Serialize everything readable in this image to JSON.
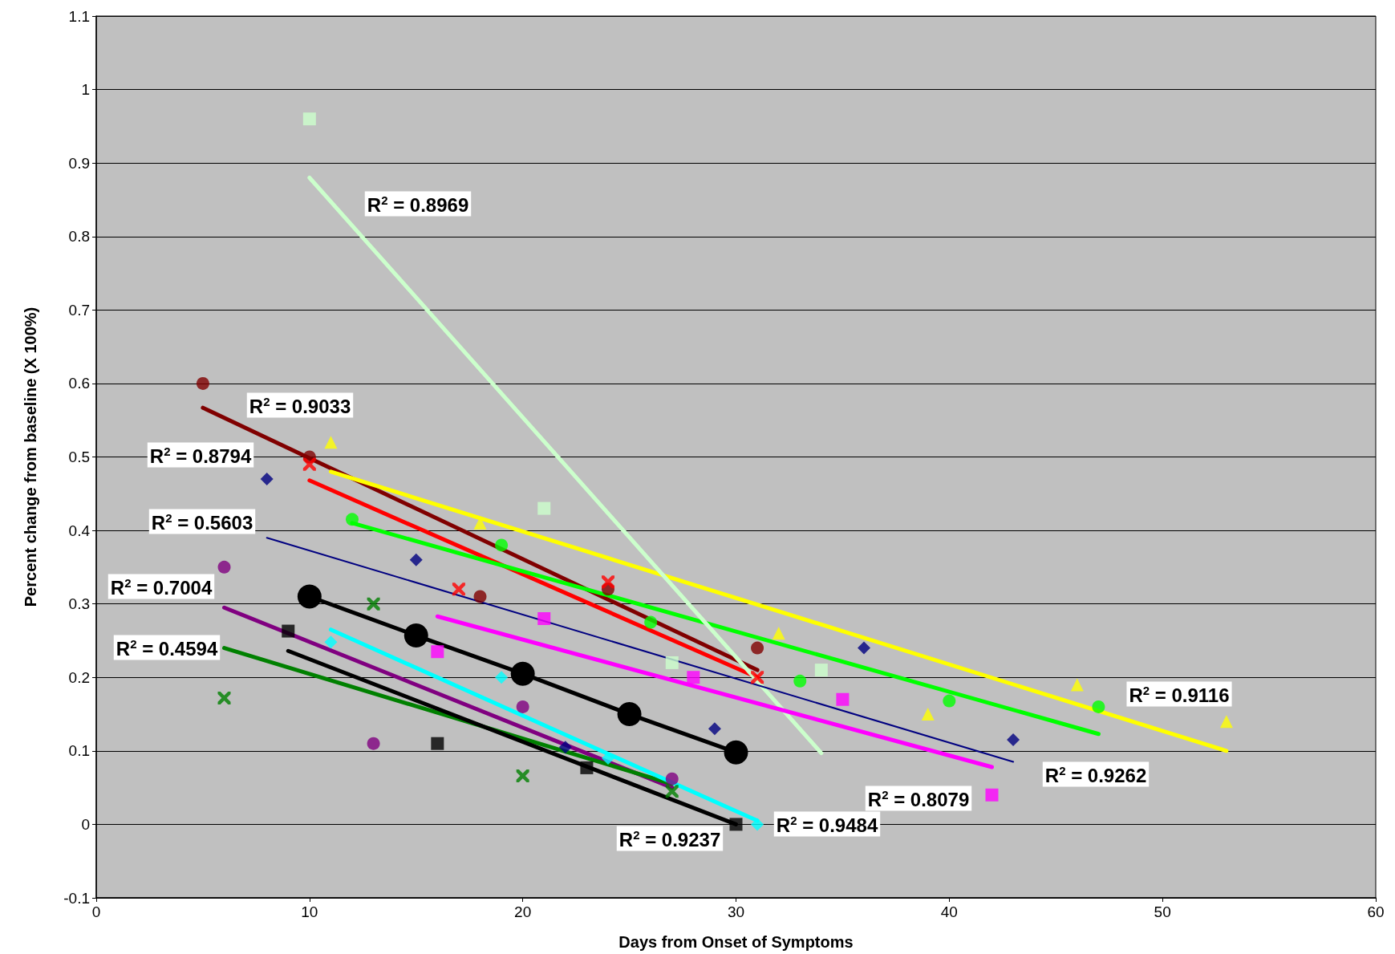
{
  "chart_data": {
    "type": "scatter",
    "xlabel": "Days from Onset of Symptoms",
    "ylabel": "Percent change from baseline (X 100%)",
    "xlim": [
      0,
      60
    ],
    "xticks": [
      0,
      10,
      20,
      30,
      40,
      50,
      60
    ],
    "ylim": [
      -0.1,
      1.1
    ],
    "yticks": [
      -0.1,
      0,
      0.1,
      0.2,
      0.3,
      0.4,
      0.5,
      0.6,
      0.7,
      0.8,
      0.9,
      1,
      1.1
    ],
    "grid": "y",
    "series": [
      {
        "marker": "circle",
        "color": "#800000",
        "x": [
          5,
          10,
          18,
          24,
          31
        ],
        "values": [
          0.6,
          0.5,
          0.31,
          0.32,
          0.24
        ]
      },
      {
        "type": "line",
        "color": "#800000",
        "x": [
          5,
          31
        ],
        "values": [
          0.567,
          0.21
        ]
      },
      {
        "marker": "cross",
        "color": "#ff0000",
        "x": [
          10,
          17,
          24,
          31
        ],
        "values": [
          0.49,
          0.32,
          0.33,
          0.2
        ]
      },
      {
        "type": "line",
        "color": "#ff0000",
        "x": [
          10,
          31
        ],
        "values": [
          0.468,
          0.2
        ]
      },
      {
        "marker": "triangle",
        "color": "#ffff00",
        "x": [
          11,
          18,
          32,
          39,
          46,
          53
        ],
        "values": [
          0.52,
          0.41,
          0.26,
          0.15,
          0.19,
          0.14
        ]
      },
      {
        "type": "line",
        "color": "#ffff00",
        "x": [
          11,
          53
        ],
        "values": [
          0.48,
          0.1
        ]
      },
      {
        "marker": "circle",
        "color": "#00ff00",
        "x": [
          12,
          19,
          26,
          33,
          40,
          47
        ],
        "values": [
          0.415,
          0.38,
          0.275,
          0.195,
          0.168,
          0.16
        ]
      },
      {
        "type": "line",
        "color": "#00ff00",
        "x": [
          12,
          47
        ],
        "values": [
          0.41,
          0.123
        ]
      },
      {
        "marker": "square",
        "color": "#ccffcc",
        "x": [
          10,
          21,
          27,
          34
        ],
        "values": [
          0.96,
          0.43,
          0.22,
          0.21
        ]
      },
      {
        "type": "line",
        "color": "#ccffcc",
        "x": [
          10,
          34
        ],
        "values": [
          0.88,
          0.097
        ]
      },
      {
        "marker": "diamond",
        "color": "#000080",
        "x": [
          8,
          15,
          22,
          29,
          36,
          43
        ],
        "values": [
          0.47,
          0.36,
          0.105,
          0.13,
          0.24,
          0.115
        ]
      },
      {
        "type": "line",
        "color": "#000080",
        "x": [
          8,
          43
        ],
        "values": [
          0.39,
          0.085
        ]
      },
      {
        "marker": "square",
        "color": "#ff00ff",
        "x": [
          16,
          21,
          28,
          35,
          42
        ],
        "values": [
          0.235,
          0.28,
          0.2,
          0.17,
          0.04
        ]
      },
      {
        "type": "line",
        "color": "#ff00ff",
        "x": [
          16,
          42
        ],
        "values": [
          0.283,
          0.078
        ]
      },
      {
        "type": "line",
        "marker": "circle",
        "color": "#000000",
        "x": [
          10,
          15,
          20,
          25,
          30
        ],
        "values": [
          0.31,
          0.257,
          0.205,
          0.15,
          0.098
        ]
      },
      {
        "marker": "circle",
        "color": "#800080",
        "x": [
          6,
          13,
          20,
          27
        ],
        "values": [
          0.35,
          0.11,
          0.16,
          0.062
        ]
      },
      {
        "type": "line",
        "color": "#800080",
        "x": [
          6,
          27
        ],
        "values": [
          0.295,
          0.05
        ]
      },
      {
        "marker": "cross",
        "color": "#008000",
        "x": [
          6,
          13,
          20,
          27
        ],
        "values": [
          0.172,
          0.3,
          0.066,
          0.045
        ]
      },
      {
        "type": "line",
        "color": "#008000",
        "x": [
          6,
          27
        ],
        "values": [
          0.24,
          0.055
        ]
      },
      {
        "marker": "square",
        "color": "#000000",
        "x": [
          9,
          16,
          23,
          30
        ],
        "values": [
          0.263,
          0.11,
          0.077,
          0
        ]
      },
      {
        "type": "line",
        "color": "#000000",
        "x": [
          9,
          30
        ],
        "values": [
          0.236,
          0
        ]
      },
      {
        "marker": "diamond",
        "color": "#00ffff",
        "x": [
          11,
          19,
          24,
          31
        ],
        "values": [
          0.248,
          0.2,
          0.09,
          0
        ]
      },
      {
        "type": "line",
        "color": "#00ffff",
        "x": [
          11,
          31
        ],
        "values": [
          0.265,
          0.005
        ]
      }
    ],
    "annotations": [
      "R$^{2}$ = 0.8969",
      "R$^{2}$ = 0.9033",
      "R$^{2}$ = 0.8794",
      "R$^{2}$ = 0.5603",
      "R$^{2}$ = 0.7004",
      "R$^{2}$ = 0.4594",
      "R$^{2}$ = 0.9237",
      "R$^{2}$ = 0.9484",
      "R$^{2}$ = 0.8079",
      "R$^{2}$ = 0.9262",
      "R$^{2}$ = 0.9116"
    ]
  }
}
